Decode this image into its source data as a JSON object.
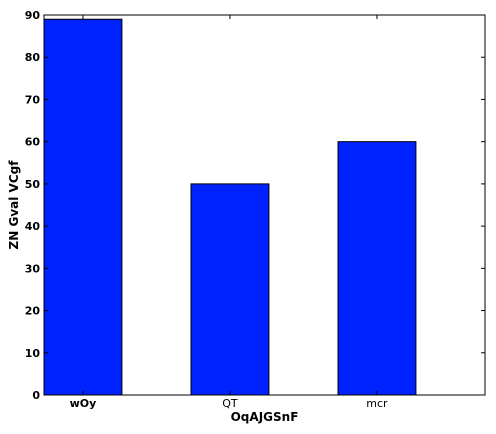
{
  "chart_data": {
    "type": "bar",
    "categories": [
      "wOy",
      "QT",
      "mcr"
    ],
    "values": [
      89,
      50,
      60
    ],
    "xlabel": "OqAJGSnF",
    "ylabel": "ZN Gval VCgf",
    "ylim": [
      0,
      90
    ],
    "yticks": [
      0,
      10,
      20,
      30,
      40,
      50,
      60,
      70,
      80,
      90
    ],
    "grid": false,
    "bar_color": "#0022ff",
    "edge_color": "#000000",
    "bold_category_index": 0
  }
}
